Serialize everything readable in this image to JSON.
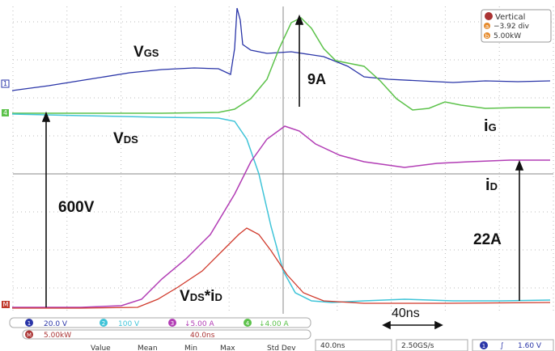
{
  "screen": {
    "settings_box": {
      "title": "Vertical",
      "rows": [
        {
          "key": "a",
          "text": "−3.92 div"
        },
        {
          "key": "b",
          "text": "5.00kW"
        }
      ]
    },
    "labels": {
      "vgs": {
        "main": "V",
        "sub": "GS"
      },
      "ig_amp": "9A",
      "ig": {
        "main": "i",
        "sub": "G"
      },
      "vds": {
        "main": "V",
        "sub": "DS"
      },
      "id": {
        "main": "i",
        "sub": "D"
      },
      "vds_amp": "600V",
      "id_amp": "22A",
      "power": {
        "main1": "V",
        "sub1": "DS",
        "star": "*i",
        "sub2": "D"
      },
      "time": "40ns"
    },
    "channel_markers": [
      "1",
      "4",
      "M"
    ],
    "status_bar": {
      "channels": [
        {
          "id": "1",
          "text": "20.0 V"
        },
        {
          "id": "2",
          "text": "100 V"
        },
        {
          "id": "3",
          "text": "↓5.00 A"
        },
        {
          "id": "4",
          "text": "↓4.00 A"
        }
      ],
      "math": {
        "id": "M",
        "text": "5.00kW",
        "time": "40.0ns"
      },
      "timebase": "40.0ns",
      "sample_rate": "2.50GS/s",
      "trigger": {
        "id": "1",
        "slope": "∫",
        "level": "1.60 V"
      },
      "measure_headers": [
        "Value",
        "Mean",
        "Min",
        "Max",
        "Std Dev"
      ]
    }
  }
}
